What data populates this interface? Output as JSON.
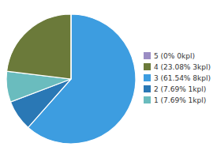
{
  "chart_data": {
    "type": "pie",
    "categories": [
      "3 (61.54% 8kpl)",
      "2 (7.69% 1kpl)",
      "1 (7.69% 1kpl)",
      "4 (23.08% 3kpl)",
      "5 (0% 0kpl)"
    ],
    "values": [
      61.54,
      7.69,
      7.69,
      23.08,
      0.0001
    ],
    "colors": [
      "#3d9de0",
      "#2a78b5",
      "#6abcbe",
      "#6b7a3a",
      "#9b8dc4"
    ],
    "legend": "right"
  }
}
